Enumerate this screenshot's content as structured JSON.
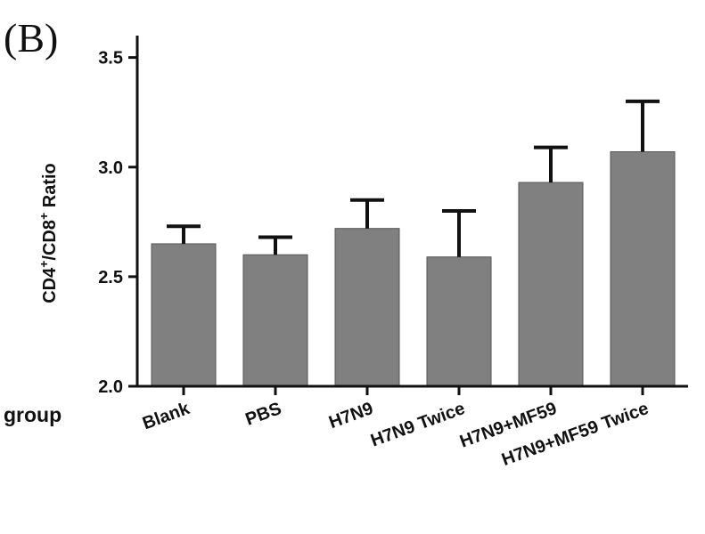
{
  "panel_label": "(B)",
  "chart_data": {
    "type": "bar",
    "categories": [
      "Blank",
      "PBS",
      "H7N9",
      "H7N9 Twice",
      "H7N9+MF59",
      "H7N9+MF59 Twice"
    ],
    "values": [
      2.65,
      2.6,
      2.72,
      2.59,
      2.93,
      3.07
    ],
    "errors": [
      0.08,
      0.08,
      0.13,
      0.21,
      0.16,
      0.23
    ],
    "xlabel": "group",
    "ylabel_parts": [
      "CD4",
      "+",
      "/CD8",
      "+",
      " Ratio"
    ],
    "ylim": [
      2.0,
      3.6
    ],
    "yticks": [
      2.0,
      2.5,
      3.0,
      3.5
    ],
    "ytick_labels": [
      "2.0",
      "2.5",
      "3.0",
      "3.5"
    ],
    "bar_color": "#808080",
    "grid": false
  }
}
